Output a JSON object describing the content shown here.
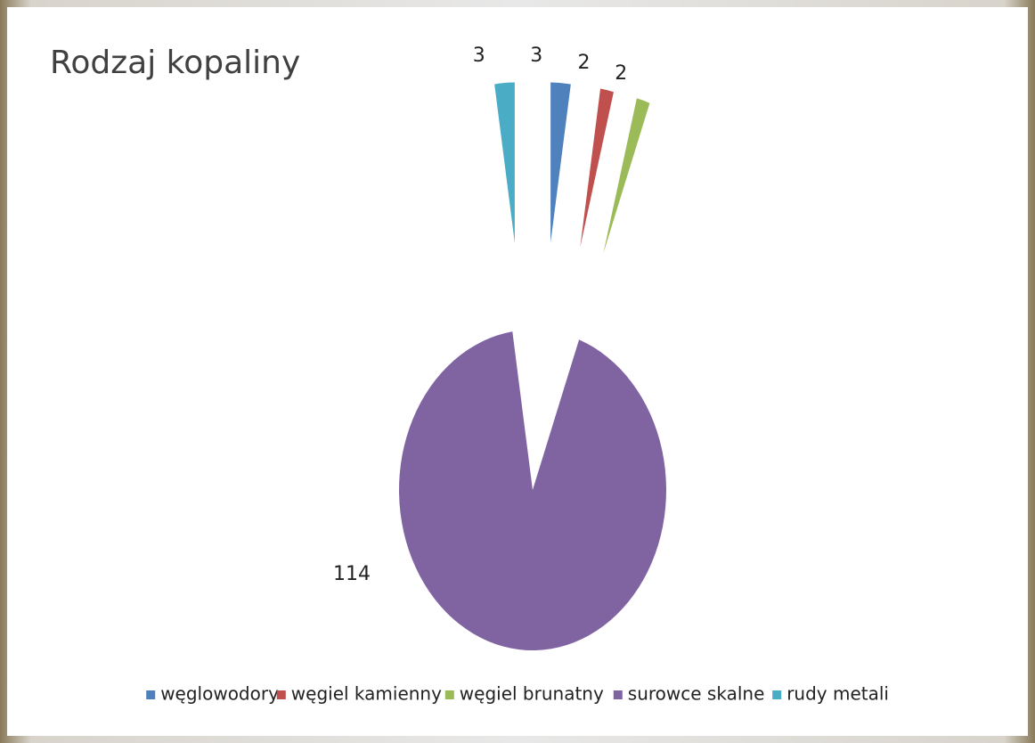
{
  "chart_data": {
    "type": "pie",
    "title": "Rodzaj kopaliny",
    "categories": [
      "węglowodory",
      "węgiel kamienny",
      "węgiel brunatny",
      "surowce skalne",
      "rudy metali"
    ],
    "values": [
      3,
      2,
      2,
      114,
      3
    ],
    "colors": [
      "#4f81bd",
      "#c0504d",
      "#9bbb59",
      "#8064a2",
      "#4bacc6"
    ],
    "legend": "bottom"
  }
}
